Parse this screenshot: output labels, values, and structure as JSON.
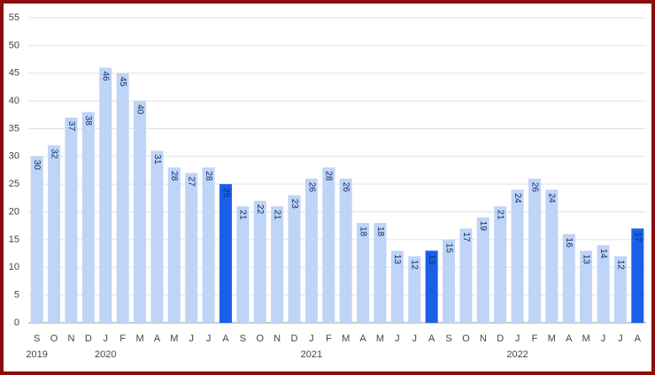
{
  "chart_data": {
    "type": "bar",
    "categories": [
      "S",
      "O",
      "N",
      "D",
      "J",
      "F",
      "M",
      "A",
      "M",
      "J",
      "J",
      "A",
      "S",
      "O",
      "N",
      "D",
      "J",
      "F",
      "M",
      "A",
      "M",
      "J",
      "J",
      "A",
      "S",
      "O",
      "N",
      "D",
      "J",
      "F",
      "M",
      "A",
      "M",
      "J",
      "J",
      "A"
    ],
    "category_years": [
      "2019",
      null,
      null,
      null,
      "2020",
      null,
      null,
      null,
      null,
      null,
      null,
      null,
      null,
      null,
      null,
      null,
      "2021",
      null,
      null,
      null,
      null,
      null,
      null,
      null,
      null,
      null,
      null,
      null,
      "2022",
      null,
      null,
      null,
      null,
      null,
      null,
      null
    ],
    "values": [
      30,
      32,
      37,
      38,
      46,
      45,
      40,
      31,
      28,
      27,
      28,
      25,
      21,
      22,
      21,
      23,
      26,
      28,
      26,
      18,
      18,
      13,
      12,
      13,
      15,
      17,
      19,
      21,
      24,
      26,
      24,
      16,
      13,
      14,
      12,
      17
    ],
    "colors": [
      "#bfd4f6",
      "#bfd4f6",
      "#bfd4f6",
      "#bfd4f6",
      "#bfd4f6",
      "#bfd4f6",
      "#bfd4f6",
      "#bfd4f6",
      "#bfd4f6",
      "#bfd4f6",
      "#bfd4f6",
      "#1a5fe8",
      "#bfd4f6",
      "#bfd4f6",
      "#bfd4f6",
      "#bfd4f6",
      "#bfd4f6",
      "#bfd4f6",
      "#bfd4f6",
      "#bfd4f6",
      "#bfd4f6",
      "#bfd4f6",
      "#bfd4f6",
      "#1a5fe8",
      "#bfd4f6",
      "#bfd4f6",
      "#bfd4f6",
      "#bfd4f6",
      "#bfd4f6",
      "#bfd4f6",
      "#bfd4f6",
      "#bfd4f6",
      "#bfd4f6",
      "#bfd4f6",
      "#bfd4f6",
      "#1a5fe8"
    ],
    "ylim": [
      0,
      55
    ],
    "yticks": [
      0,
      5,
      10,
      15,
      20,
      25,
      30,
      35,
      40,
      45,
      50,
      55
    ],
    "grid": true
  }
}
